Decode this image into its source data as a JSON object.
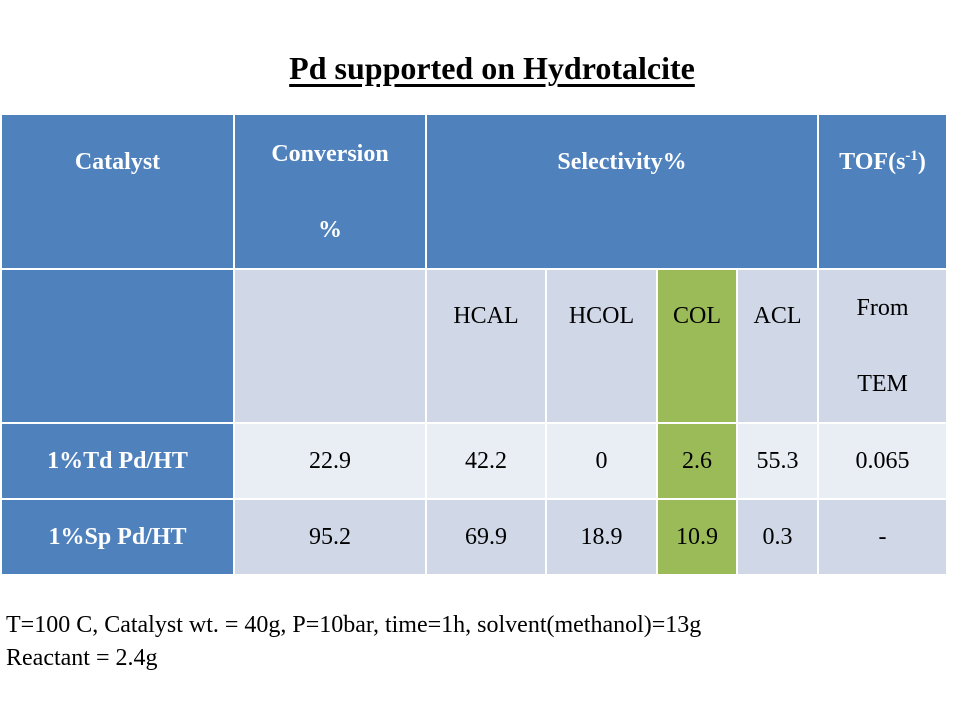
{
  "title": "Pd supported on Hydrotalcite",
  "table": {
    "header": {
      "catalyst": "Catalyst",
      "conversion_line1": "Conversion",
      "conversion_line2": "%",
      "selectivity": "Selectivity%",
      "tof_prefix": "TOF(s",
      "tof_sup": "-1",
      "tof_suffix": ")"
    },
    "subheader": {
      "catalyst": "",
      "conversion": "",
      "hcal": "HCAL",
      "hcol": "HCOL",
      "col": "COL",
      "acl": "ACL",
      "tof_line1": "From",
      "tof_line2": "TEM"
    },
    "rows": [
      {
        "catalyst": "1%Td Pd/HT",
        "conversion": "22.9",
        "hcal": "42.2",
        "hcol": "0",
        "col": "2.6",
        "acl": "55.3",
        "tof": "0.065"
      },
      {
        "catalyst": "1%Sp Pd/HT",
        "conversion": "95.2",
        "hcal": "69.9",
        "hcol": "18.9",
        "col": "10.9",
        "acl": "0.3",
        "tof": "-"
      }
    ]
  },
  "notes": {
    "line1": "T=100 C, Catalyst wt. = 40g, P=10bar, time=1h, solvent(methanol)=13g",
    "line2": "Reactant = 2.4g"
  },
  "colors": {
    "header_blue": "#4f81bd",
    "row_light": "#d0d8e8",
    "row_lighter": "#e9edf4",
    "highlight_green": "#9bbb59"
  }
}
